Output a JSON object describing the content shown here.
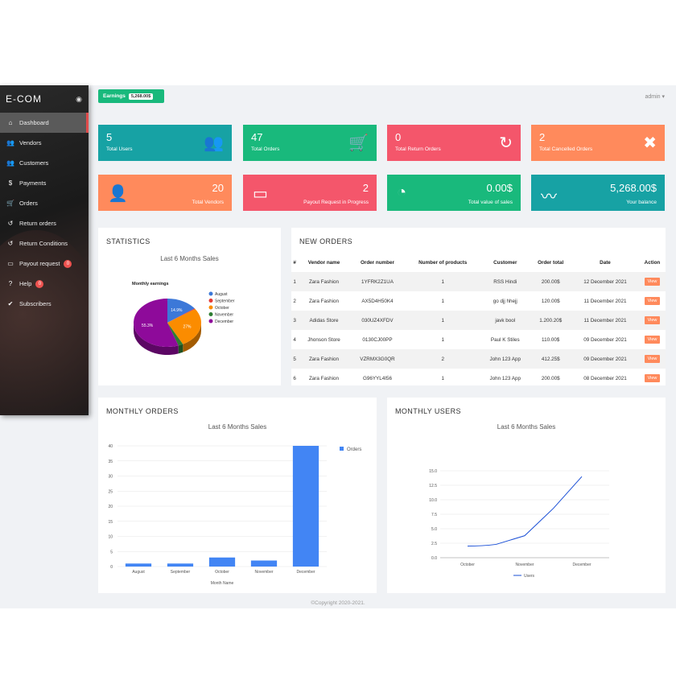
{
  "brand": "E-COM",
  "nav": [
    {
      "label": "Dashboard",
      "icon": "home-icon",
      "glyph": "⌂",
      "active": true
    },
    {
      "label": "Vendors",
      "icon": "users-icon",
      "glyph": "👥"
    },
    {
      "label": "Customers",
      "icon": "users-icon",
      "glyph": "👥"
    },
    {
      "label": "Payments",
      "icon": "dollar-icon",
      "glyph": "$"
    },
    {
      "label": "Orders",
      "icon": "cart-icon",
      "glyph": "🛒"
    },
    {
      "label": "Return orders",
      "icon": "undo-icon",
      "glyph": "↺"
    },
    {
      "label": "Return Conditions",
      "icon": "undo-icon",
      "glyph": "↺"
    },
    {
      "label": "Payout request",
      "icon": "wallet-icon",
      "glyph": "▭",
      "badge": "0"
    },
    {
      "label": "Help",
      "icon": "help-icon",
      "glyph": "?",
      "badge": "0"
    },
    {
      "label": "Subscribers",
      "icon": "check-icon",
      "glyph": "✔"
    }
  ],
  "earnings": {
    "label": "Earnings",
    "value": "5,268.00$"
  },
  "user": {
    "name": "admin",
    "caret": "▾"
  },
  "stats_top": [
    {
      "num": "5",
      "label": "Total Users",
      "color": "#17a2a4",
      "icon": "users-icon"
    },
    {
      "num": "47",
      "label": "Total Orders",
      "color": "#19b97c",
      "icon": "cart-icon"
    },
    {
      "num": "0",
      "label": "Total Return Orders",
      "color": "#f4566b",
      "icon": "undo-icon"
    },
    {
      "num": "2",
      "label": "Total Cancelled Orders",
      "color": "#ff8a5c",
      "icon": "close-icon"
    }
  ],
  "stats_bottom": [
    {
      "num": "20",
      "label": "Total Vendors",
      "color": "#ff8a5c",
      "icon": "user-icon"
    },
    {
      "num": "2",
      "label": "Payout Request in Progress",
      "color": "#f4566b",
      "icon": "wallet-icon"
    },
    {
      "num": "0.00$",
      "label": "Total value of sales",
      "color": "#19b97c",
      "icon": "pie-icon"
    },
    {
      "num": "5,268.00$",
      "label": "Your balance",
      "color": "#17a2a4",
      "icon": "trend-icon"
    }
  ],
  "statistics": {
    "title": "STATISTICS",
    "subtitle": "Last 6 Months Sales"
  },
  "new_orders": {
    "title": "NEW ORDERS",
    "headers": [
      "#",
      "Vendor name",
      "Order number",
      "Number of products",
      "Customer",
      "Order total",
      "Date",
      "Action"
    ],
    "rows": [
      [
        "1",
        "Zara Fashion",
        "1YFRK2Z1UA",
        "1",
        "RSS Hindi",
        "200.00$",
        "12 December 2021",
        "View"
      ],
      [
        "2",
        "Zara Fashion",
        "AX5D4H50K4",
        "1",
        "go djj hhejj",
        "120.00$",
        "11 December 2021",
        "View"
      ],
      [
        "3",
        "Adidas Store",
        "030UZ4XFDV",
        "1",
        "javk bool",
        "1.200.20$",
        "11 December 2021",
        "View"
      ],
      [
        "4",
        "Jhonson Store",
        "0130CJ00PP",
        "1",
        "Paul K Stiles",
        "110.00$",
        "09 December 2021",
        "View"
      ],
      [
        "5",
        "Zara Fashion",
        "VZRMX3G0QR",
        "2",
        "John 123 App",
        "412.25$",
        "09 December 2021",
        "View"
      ],
      [
        "6",
        "Zara Fashion",
        "G96YYL4I56",
        "1",
        "John 123 App",
        "200.00$",
        "08 December 2021",
        "View"
      ]
    ]
  },
  "monthly_orders": {
    "title": "MONTHLY ORDERS",
    "subtitle": "Last 6 Months Sales"
  },
  "monthly_users": {
    "title": "MONTHLY USERS",
    "subtitle": "Last 6 Months Sales"
  },
  "footer": "©Copyright 2020-2021.",
  "chart_data": [
    {
      "type": "pie",
      "title": "Monthly earnings",
      "categories": [
        "August",
        "September",
        "October",
        "November",
        "December"
      ],
      "values": [
        14.9,
        0.5,
        27,
        2.3,
        55.3
      ],
      "slice_labels": [
        "14.9%",
        "",
        "27%",
        "",
        "55.3%"
      ],
      "colors": [
        "#3c78d8",
        "#e53935",
        "#fb8c00",
        "#2e7d32",
        "#8e0a9a"
      ],
      "legend": "right"
    },
    {
      "type": "bar",
      "categories": [
        "August",
        "September",
        "October",
        "November",
        "December"
      ],
      "series": [
        {
          "name": "Orders",
          "values": [
            1,
            1,
            3,
            2,
            40
          ]
        }
      ],
      "xlabel": "Month Name",
      "ylim": [
        0,
        40
      ],
      "yticks": [
        "0",
        "5",
        "10",
        "15",
        "20",
        "25",
        "30",
        "35",
        "40"
      ],
      "color": "#4285f4",
      "legend": "right"
    },
    {
      "type": "line",
      "categories": [
        "October",
        "November",
        "December"
      ],
      "series": [
        {
          "name": "Users",
          "x": [
            0,
            0.5,
            1,
            1.5,
            2
          ],
          "values": [
            2,
            2.3,
            3.8,
            8.5,
            14
          ]
        }
      ],
      "ylim": [
        0,
        15
      ],
      "yticks": [
        "0.0",
        "2.5",
        "5.0",
        "7.5",
        "10.0",
        "12.5",
        "15.0"
      ],
      "color": "#1a4fd6",
      "legend": "bottom"
    }
  ]
}
